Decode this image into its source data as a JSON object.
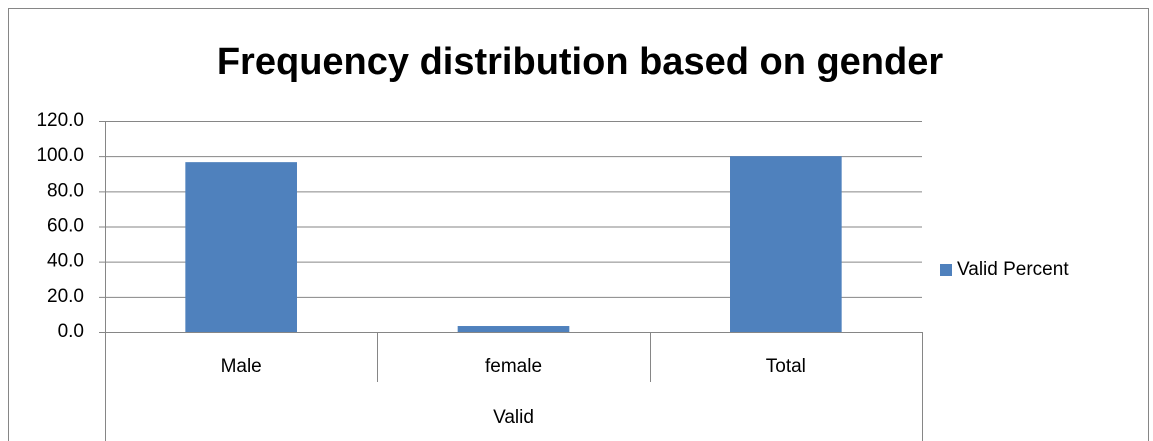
{
  "chart_data": {
    "type": "bar",
    "title": "Frequency distribution based on gender",
    "categories": [
      "Male",
      "female",
      "Total"
    ],
    "category_group": "Valid",
    "series": [
      {
        "name": "Valid Percent",
        "color": "#4f81bd",
        "values": [
          96.6,
          3.4,
          100
        ]
      }
    ],
    "ylim": [
      0,
      120
    ],
    "yticks": [
      {
        "value": 0,
        "label": "0.0"
      },
      {
        "value": 20,
        "label": "20.0"
      },
      {
        "value": 40,
        "label": "40.0"
      },
      {
        "value": 60,
        "label": "60.0"
      },
      {
        "value": 80,
        "label": "80.0"
      },
      {
        "value": 100,
        "label": "100.0"
      },
      {
        "value": 120,
        "label": "120.0"
      }
    ],
    "grid": true,
    "legend": "right"
  }
}
